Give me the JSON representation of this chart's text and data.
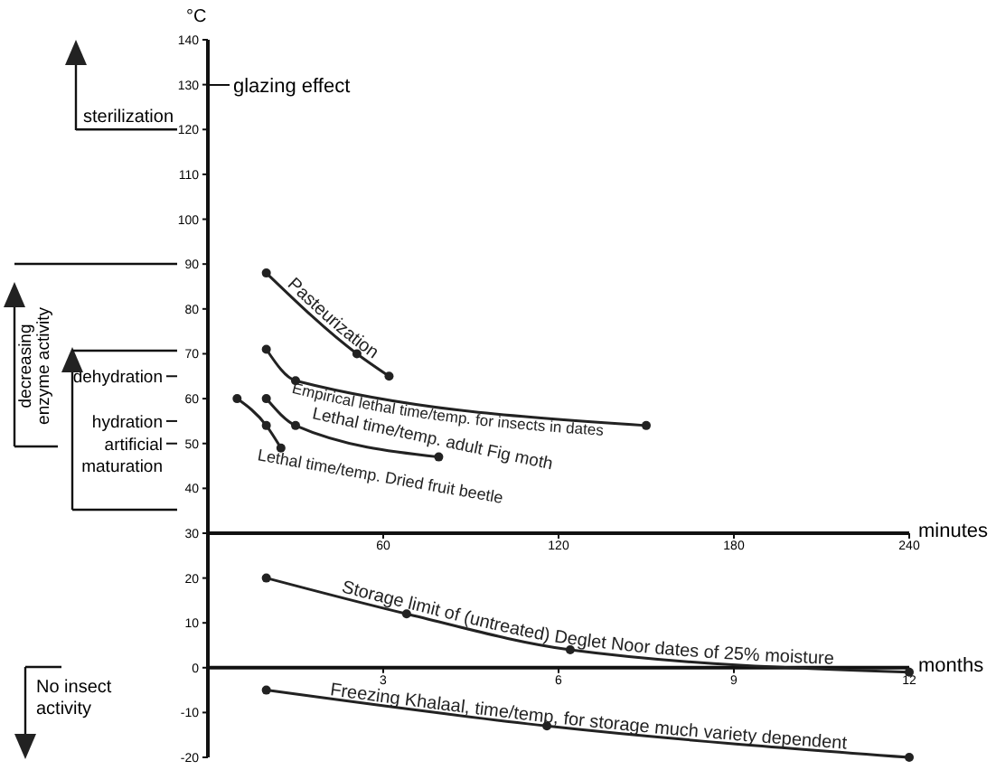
{
  "chart_data": [
    {
      "type": "line",
      "ylabel": "°C",
      "xlabel": "minutes",
      "xlim": [
        0,
        240
      ],
      "xticks": [
        60,
        120,
        180,
        240
      ],
      "ylim": [
        30,
        140
      ],
      "yticks": [
        30,
        40,
        50,
        60,
        70,
        80,
        90,
        100,
        110,
        120,
        130,
        140
      ],
      "marker": "circle",
      "annotations": [
        "decreasing enzyme activity",
        "glazing effect"
      ],
      "ref_lines": [
        {
          "axis": "y",
          "value": 120,
          "label": "sterilization"
        },
        {
          "axis": "y",
          "value": 65,
          "label": "dehydration"
        },
        {
          "axis": "y",
          "value": 55,
          "label": "hydration"
        },
        {
          "axis": "y",
          "value": 50,
          "label": "artificial maturation"
        }
      ],
      "series": [
        {
          "name": "Pasteurization",
          "color": "#222222",
          "x": [
            20,
            51,
            62
          ],
          "values": [
            88,
            70,
            65
          ]
        },
        {
          "name": "Empirical lethal time/temp. for insects in dates",
          "color": "#222222",
          "x": [
            20,
            30,
            150
          ],
          "values": [
            71,
            64,
            54
          ]
        },
        {
          "name": "Lethal time/temp. adult Fig moth",
          "color": "#222222",
          "x": [
            20,
            30,
            79
          ],
          "values": [
            60,
            54,
            47
          ]
        },
        {
          "name": "Lethal time/temp. Dried fruit beetle",
          "color": "#222222",
          "x": [
            10,
            20,
            25
          ],
          "values": [
            60,
            54,
            49
          ]
        }
      ]
    },
    {
      "type": "line",
      "xlabel": "months",
      "xlim": [
        0,
        12
      ],
      "xticks": [
        3,
        6,
        9,
        12
      ],
      "ylim": [
        -20,
        30
      ],
      "yticks": [
        -20,
        -10,
        0,
        10,
        20
      ],
      "marker": "circle",
      "annotations": [
        "No insect activity"
      ],
      "series": [
        {
          "name": "Storage limit of (untreated) Deglet Noor dates of 25% moisture",
          "color": "#222222",
          "x": [
            1,
            3.4,
            6.2,
            12
          ],
          "values": [
            20,
            12,
            4,
            -1
          ]
        },
        {
          "name": "Freezing Khalaal, time/temp, for storage much variety dependent",
          "color": "#222222",
          "x": [
            1,
            5.8,
            12
          ],
          "values": [
            -5,
            -13,
            -20
          ]
        }
      ]
    }
  ]
}
